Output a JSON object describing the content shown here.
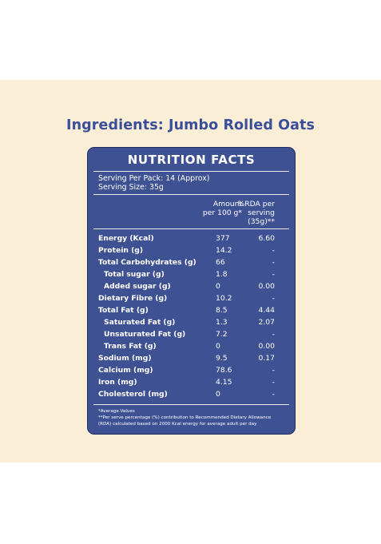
{
  "title": "Ingredients: Jumbo Rolled Oats",
  "panel": {
    "heading": "NUTRITION FACTS",
    "serving_per_pack": "Serving Per Pack: 14 (Approx)",
    "serving_size": "Serving Size: 35g",
    "col_amount": [
      "Amount",
      "per 100 g*"
    ],
    "col_rda": [
      "%RDA per",
      "serving",
      "(35g)**"
    ],
    "rows": [
      {
        "name": "Energy (Kcal)",
        "amount": "377",
        "rda": "6.60"
      },
      {
        "name": "Protein (g)",
        "amount": "14.2",
        "rda": "-"
      },
      {
        "name": "Total Carbohydrates (g)",
        "amount": "66",
        "rda": "-"
      },
      {
        "name": "Total sugar (g)",
        "amount": "1.8",
        "rda": "-"
      },
      {
        "name": "Added sugar (g)",
        "amount": "0",
        "rda": "0.00"
      },
      {
        "name": "Dietary Fibre (g)",
        "amount": "10.2",
        "rda": "-"
      },
      {
        "name": "Total Fat (g)",
        "amount": "8.5",
        "rda": "4.44"
      },
      {
        "name": "Saturated Fat (g)",
        "amount": "1.3",
        "rda": "2.07"
      },
      {
        "name": "Unsaturated Fat (g)",
        "amount": "7.2",
        "rda": "-"
      },
      {
        "name": "Trans Fat (g)",
        "amount": "0",
        "rda": "0.00"
      },
      {
        "name": "Sodium (mg)",
        "amount": "9.5",
        "rda": "0.17"
      },
      {
        "name": "Calcium (mg)",
        "amount": "78.6",
        "rda": "-"
      },
      {
        "name": "Iron (mg)",
        "amount": "4.15",
        "rda": "-"
      },
      {
        "name": "Cholesterol (mg)",
        "amount": "0",
        "rda": "-"
      }
    ],
    "footnotes": [
      "*Average Values",
      "**Per serve percentage (%) contribution to Recommended Dietary Allowance",
      "(RDA) calculated based on 2000 Kcal energy for average adult per day"
    ]
  }
}
